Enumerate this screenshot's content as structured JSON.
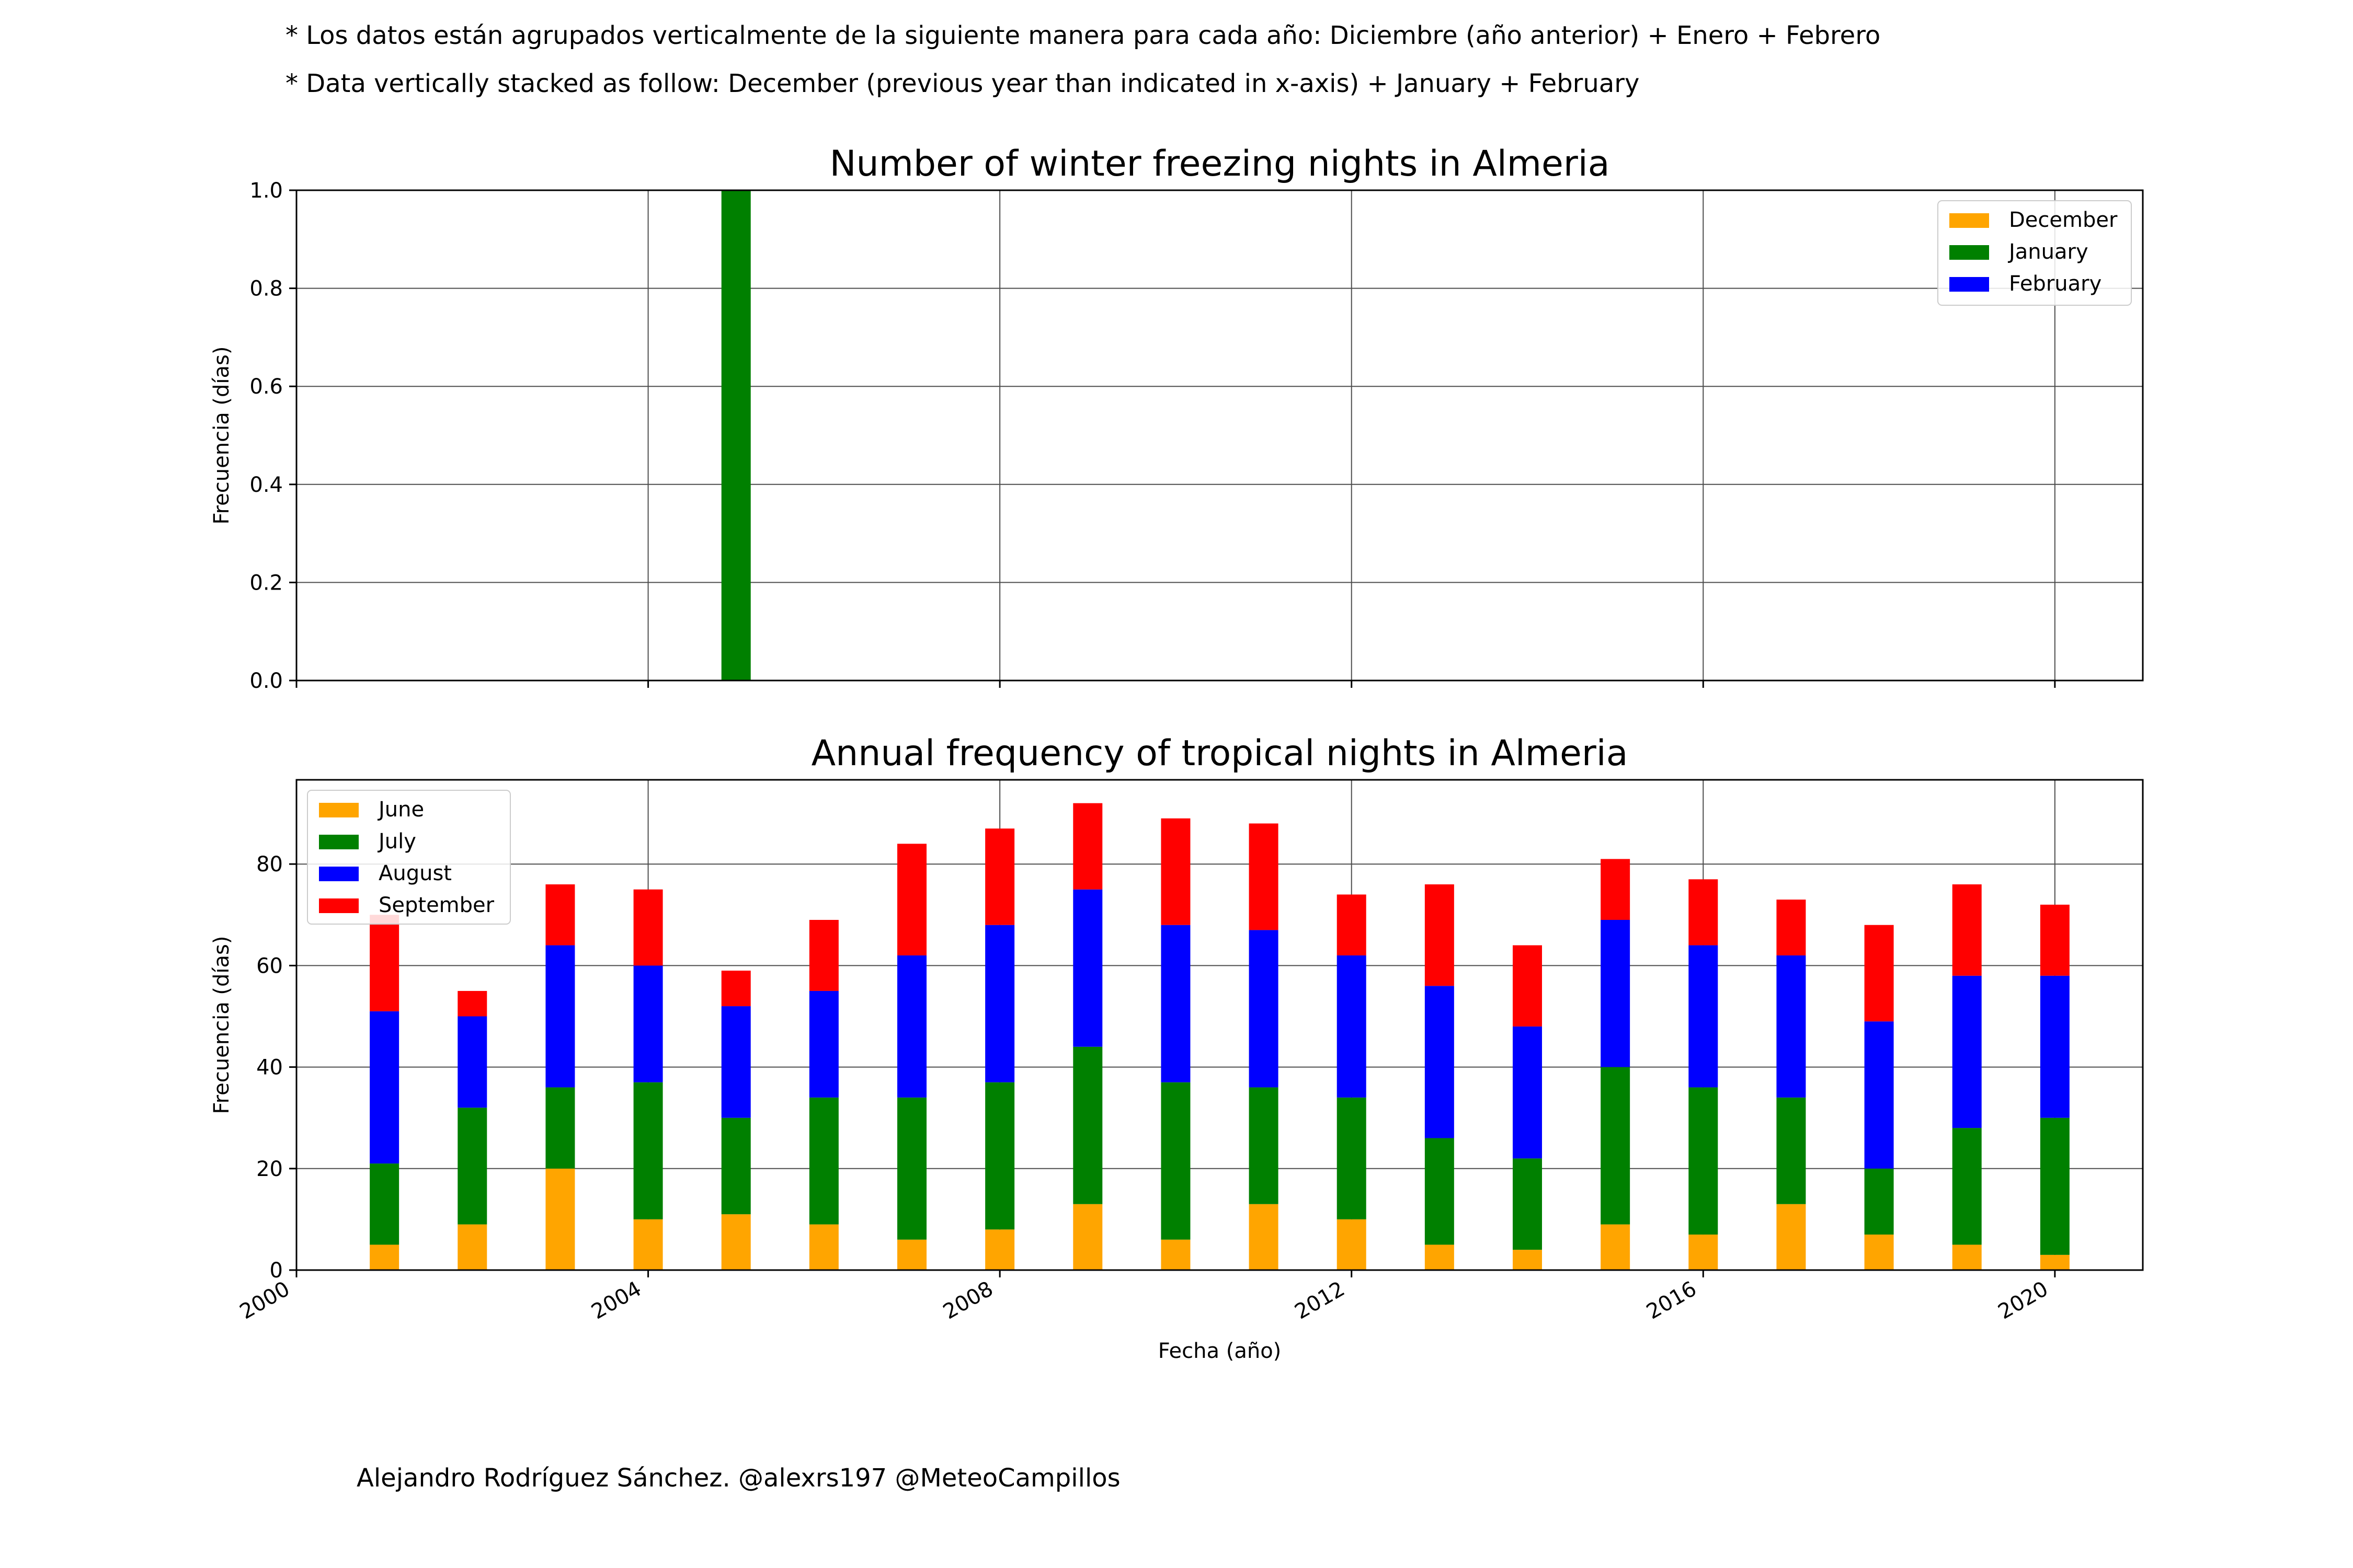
{
  "notes": {
    "line1": "* Los datos están agrupados verticalmente de la siguiente manera para cada año: Diciembre (año anterior) + Enero  + Febrero",
    "line2": "* Data vertically stacked as follow: December (previous year than indicated in x-axis) + January  + February"
  },
  "credit": "Alejandro Rodríguez Sánchez. @alexrs197 @MeteoCampillos",
  "chart_data": [
    {
      "type": "bar",
      "stacked": true,
      "title": "Number of winter freezing nights in Almeria",
      "xlabel": "",
      "ylabel": "Frecuencia (días)",
      "xlim": [
        2000,
        2021
      ],
      "ylim": [
        0,
        1
      ],
      "xticks": [
        2000,
        2004,
        2008,
        2012,
        2016,
        2020
      ],
      "yticks": [
        "0.0",
        "0.2",
        "0.4",
        "0.6",
        "0.8",
        "1.0"
      ],
      "grid": true,
      "legend_position": "top-right",
      "x": [
        2001,
        2002,
        2003,
        2004,
        2005,
        2006,
        2007,
        2008,
        2009,
        2010,
        2011,
        2012,
        2013,
        2014,
        2015,
        2016,
        2017,
        2018,
        2019,
        2020
      ],
      "series": [
        {
          "name": "December",
          "color": "#ffa500",
          "values": [
            0,
            0,
            0,
            0,
            0,
            0,
            0,
            0,
            0,
            0,
            0,
            0,
            0,
            0,
            0,
            0,
            0,
            0,
            0,
            0
          ]
        },
        {
          "name": "January",
          "color": "#008000",
          "values": [
            0,
            0,
            0,
            0,
            1,
            0,
            0,
            0,
            0,
            0,
            0,
            0,
            0,
            0,
            0,
            0,
            0,
            0,
            0,
            0
          ]
        },
        {
          "name": "February",
          "color": "#0000ff",
          "values": [
            0,
            0,
            0,
            0,
            0,
            0,
            0,
            0,
            0,
            0,
            0,
            0,
            0,
            0,
            0,
            0,
            0,
            0,
            0,
            0
          ]
        }
      ]
    },
    {
      "type": "bar",
      "stacked": true,
      "title": "Annual frequency of tropical nights in Almeria",
      "xlabel": "Fecha (año)",
      "ylabel": "Frecuencia (días)",
      "xlim": [
        2000,
        2021
      ],
      "ylim": [
        0,
        96.6
      ],
      "xticks": [
        2000,
        2004,
        2008,
        2012,
        2016,
        2020
      ],
      "yticks": [
        "0",
        "20",
        "40",
        "60",
        "80"
      ],
      "grid": true,
      "legend_position": "top-left",
      "x": [
        2001,
        2002,
        2003,
        2004,
        2005,
        2006,
        2007,
        2008,
        2009,
        2010,
        2011,
        2012,
        2013,
        2014,
        2015,
        2016,
        2017,
        2018,
        2019,
        2020
      ],
      "series": [
        {
          "name": "June",
          "color": "#ffa500",
          "values": [
            5,
            9,
            20,
            10,
            11,
            9,
            6,
            8,
            13,
            6,
            13,
            10,
            5,
            4,
            9,
            7,
            13,
            7,
            5,
            3
          ]
        },
        {
          "name": "July",
          "color": "#008000",
          "values": [
            16,
            23,
            16,
            27,
            19,
            25,
            28,
            29,
            31,
            31,
            23,
            24,
            21,
            18,
            31,
            29,
            21,
            13,
            23,
            27
          ]
        },
        {
          "name": "August",
          "color": "#0000ff",
          "values": [
            30,
            18,
            28,
            23,
            22,
            21,
            28,
            31,
            31,
            31,
            31,
            28,
            30,
            26,
            29,
            28,
            28,
            29,
            30,
            28
          ]
        },
        {
          "name": "September",
          "color": "#ff0000",
          "values": [
            19,
            5,
            12,
            15,
            7,
            14,
            22,
            19,
            17,
            21,
            21,
            12,
            20,
            16,
            12,
            13,
            11,
            19,
            18,
            14
          ]
        }
      ]
    }
  ]
}
